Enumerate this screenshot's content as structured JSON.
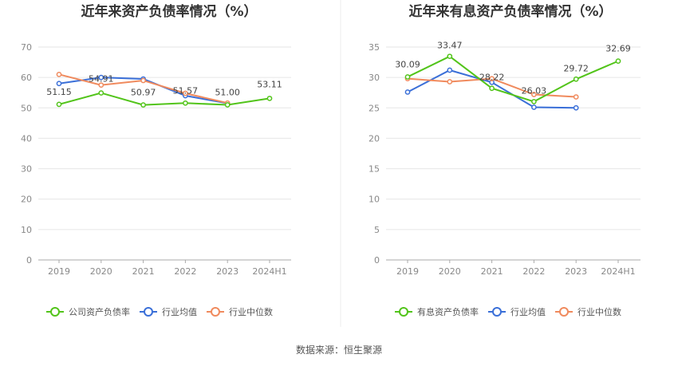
{
  "source_label": "数据来源：恒生聚源",
  "chart_data": [
    {
      "type": "line",
      "title": "近年来资产负债率情况（%）",
      "categories": [
        "2019",
        "2020",
        "2021",
        "2022",
        "2023",
        "2024H1"
      ],
      "ylim": [
        0,
        70
      ],
      "yticks": [
        "0",
        "10",
        "20",
        "30",
        "40",
        "50",
        "60",
        "70"
      ],
      "grid": true,
      "legend_position": "bottom",
      "series": [
        {
          "name": "公司资产负债率",
          "color": "#52c41a",
          "values": [
            51.15,
            54.91,
            50.97,
            51.57,
            51.0,
            53.11
          ],
          "labels": [
            "51.15",
            "54.91",
            "50.97",
            "51.57",
            "51.00",
            "53.11"
          ]
        },
        {
          "name": "行业均值",
          "color": "#3a6fd8",
          "values": [
            58.0,
            60.0,
            59.5,
            54.0,
            51.5,
            null
          ]
        },
        {
          "name": "行业中位数",
          "color": "#f08a5d",
          "values": [
            61.0,
            57.5,
            59.0,
            54.8,
            51.6,
            null
          ]
        }
      ]
    },
    {
      "type": "line",
      "title": "近年来有息资产负债率情况（%）",
      "categories": [
        "2019",
        "2020",
        "2021",
        "2022",
        "2023",
        "2024H1"
      ],
      "ylim": [
        0,
        35
      ],
      "yticks": [
        "0",
        "5",
        "10",
        "15",
        "20",
        "25",
        "30",
        "35"
      ],
      "grid": true,
      "legend_position": "bottom",
      "series": [
        {
          "name": "有息资产负债率",
          "color": "#52c41a",
          "values": [
            30.09,
            33.47,
            28.22,
            26.03,
            29.72,
            32.69
          ],
          "labels": [
            "30.09",
            "33.47",
            "28.22",
            "26.03",
            "29.72",
            "32.69"
          ]
        },
        {
          "name": "行业均值",
          "color": "#3a6fd8",
          "values": [
            27.6,
            31.2,
            29.2,
            25.1,
            25.0,
            null
          ]
        },
        {
          "name": "行业中位数",
          "color": "#f08a5d",
          "values": [
            29.8,
            29.3,
            29.8,
            27.2,
            26.8,
            null
          ]
        }
      ]
    }
  ]
}
